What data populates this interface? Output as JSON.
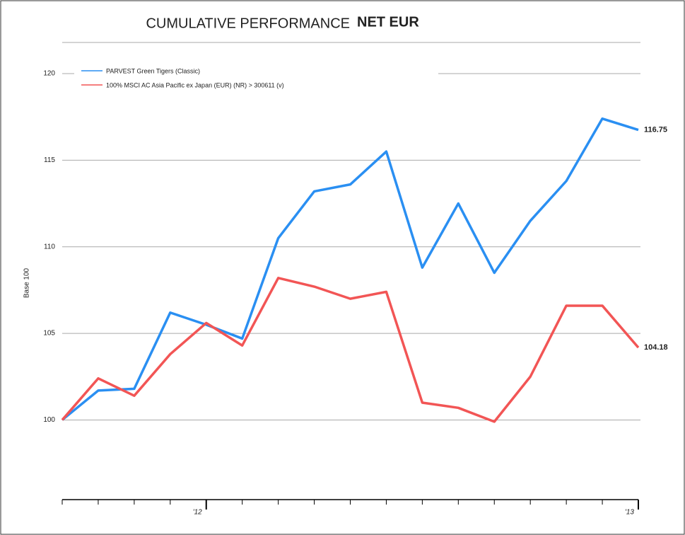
{
  "chart_data": {
    "type": "line",
    "title": "CUMULATIVE PERFORMANCE",
    "subtitle": "NET EUR",
    "y_label": "Base 100",
    "categories": [
      null,
      null,
      null,
      null,
      "'12",
      null,
      null,
      null,
      null,
      null,
      null,
      null,
      null,
      null,
      null,
      null,
      "'13"
    ],
    "series": [
      {
        "name": "PARVEST Green Tigers (Classic)",
        "color": "#2a8ff2",
        "values": [
          100,
          101.7,
          101.8,
          106.2,
          105.5,
          104.7,
          110.5,
          113.2,
          113.6,
          115.5,
          108.8,
          112.5,
          108.5,
          111.5,
          113.8,
          117.4,
          116.75
        ]
      },
      {
        "name": "100% MSCI AC Asia Pacific ex Japan (EUR) (NR) > 300611 (v)",
        "color": "#f25555",
        "values": [
          100,
          102.4,
          101.4,
          103.8,
          105.6,
          104.3,
          108.2,
          107.7,
          107.0,
          107.4,
          101.0,
          100.7,
          99.9,
          102.5,
          106.6,
          106.6,
          104.18
        ]
      }
    ],
    "ylim": [
      95.4,
      121.8
    ],
    "yticks": [
      100,
      105,
      110,
      115,
      120
    ],
    "grid": true,
    "legend": "upper-left"
  }
}
